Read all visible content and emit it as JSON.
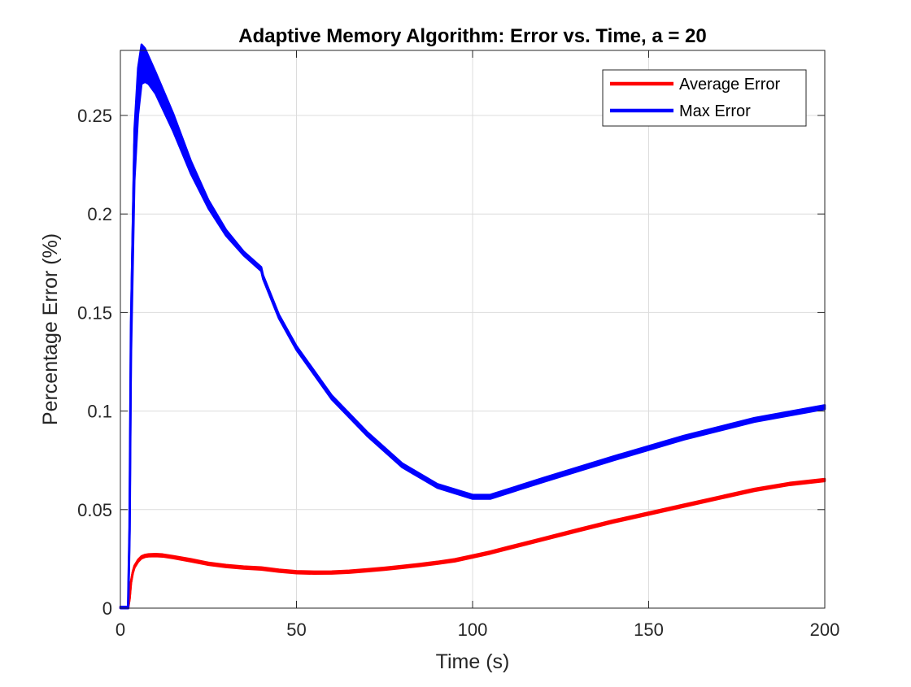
{
  "chart_data": {
    "type": "line",
    "title": "Adaptive Memory Algorithm: Error vs. Time, a = 20",
    "xlabel": "Time (s)",
    "ylabel": "Percentage Error (%)",
    "xlim": [
      0,
      200
    ],
    "ylim": [
      0,
      0.283
    ],
    "xticks": [
      0,
      50,
      100,
      150,
      200
    ],
    "xtick_labels": [
      "0",
      "50",
      "100",
      "150",
      "200"
    ],
    "yticks": [
      0,
      0.05,
      0.1,
      0.15,
      0.2,
      0.25
    ],
    "ytick_labels": [
      "0",
      "0.05",
      "0.1",
      "0.15",
      "0.2",
      "0.25"
    ],
    "grid": true,
    "legend_position": "top-right",
    "series": [
      {
        "name": "Average Error",
        "color": "#ff0000",
        "band": 0.0006,
        "x": [
          0,
          1.5,
          2.2,
          2.6,
          3.0,
          3.5,
          4,
          5,
          6,
          7,
          8,
          10,
          12,
          15,
          20,
          25,
          30,
          35,
          40,
          45,
          50,
          55,
          60,
          65,
          70,
          75,
          80,
          85,
          90,
          95,
          100,
          105,
          110,
          120,
          130,
          140,
          150,
          160,
          170,
          180,
          190,
          200
        ],
        "y": [
          0,
          0,
          0,
          0.005,
          0.013,
          0.018,
          0.021,
          0.024,
          0.0258,
          0.0265,
          0.0268,
          0.0269,
          0.0267,
          0.0259,
          0.0243,
          0.0225,
          0.0214,
          0.0206,
          0.0201,
          0.019,
          0.0182,
          0.018,
          0.0181,
          0.0185,
          0.0192,
          0.02,
          0.0209,
          0.0219,
          0.023,
          0.0243,
          0.0262,
          0.0282,
          0.0305,
          0.035,
          0.0396,
          0.044,
          0.048,
          0.052,
          0.056,
          0.06,
          0.063,
          0.065
        ]
      },
      {
        "name": "Max Error",
        "color": "#0000ff",
        "band_upper": [
          0.0007,
          0.0007,
          0.0007,
          0.002,
          0.005,
          0.008,
          0.012,
          0.014,
          0.013,
          0.011,
          0.009,
          0.007,
          0.005,
          0.003,
          0.002,
          0.001,
          0.001,
          0.001,
          0.001,
          0.001,
          0.001,
          0.001,
          0.001,
          0.001,
          0.001,
          0.001,
          0.001,
          0.001,
          0.001,
          0.001,
          0.001
        ],
        "band_lower": [
          0.0007,
          0.0007,
          0.0007,
          0.002,
          0.015,
          0.018,
          0.012,
          0.006,
          0.004,
          0.003,
          0.002,
          0.002,
          0.0015,
          0.0012,
          0.001,
          0.001,
          0.001,
          0.001,
          0.001,
          0.001,
          0.001,
          0.001,
          0.001,
          0.001,
          0.001,
          0.001,
          0.001,
          0.001,
          0.001,
          0.001,
          0.001
        ],
        "x": [
          0,
          1.5,
          2.2,
          2.6,
          3.0,
          4,
          5,
          6,
          7,
          8,
          10,
          15,
          20,
          25,
          30,
          35,
          40,
          40.5,
          45,
          50,
          60,
          70,
          80,
          90,
          100,
          105,
          120,
          140,
          160,
          180,
          200
        ],
        "y": [
          0,
          0,
          0,
          0.04,
          0.14,
          0.235,
          0.262,
          0.272,
          0.271,
          0.269,
          0.263,
          0.244,
          0.222,
          0.204,
          0.19,
          0.18,
          0.172,
          0.168,
          0.148,
          0.132,
          0.107,
          0.0885,
          0.0725,
          0.062,
          0.0565,
          0.0565,
          0.065,
          0.076,
          0.0865,
          0.0955,
          0.102
        ]
      }
    ]
  }
}
